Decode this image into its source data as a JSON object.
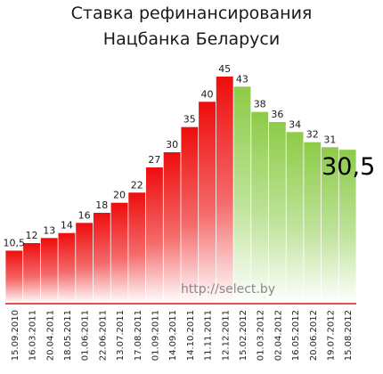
{
  "chart_data": {
    "type": "bar",
    "title": "Ставка рефинансирования",
    "subtitle": "Нацбанка Беларуси",
    "categories": [
      "15.09.2010",
      "16.03.2011",
      "20.04.2011",
      "18.05.2011",
      "01.06.2011",
      "22.06.2011",
      "13.07.2011",
      "17.08.2011",
      "01.09.2011",
      "14.09.2011",
      "14.10.2011",
      "11.11.2011",
      "12.12.2011",
      "15.02.2012",
      "01.03.2012",
      "02.04.2012",
      "16.05.2012",
      "20.06.2012",
      "19.07.2012",
      "15.08.2012"
    ],
    "values": [
      10.5,
      12,
      13,
      14,
      16,
      18,
      20,
      22,
      27,
      30,
      35,
      40,
      45,
      43,
      38,
      36,
      34,
      32,
      31,
      30.5
    ],
    "value_labels": [
      "10,5",
      "12",
      "13",
      "14",
      "16",
      "18",
      "20",
      "22",
      "27",
      "30",
      "35",
      "40",
      "45",
      "43",
      "38",
      "36",
      "34",
      "32",
      "31",
      "30,5"
    ],
    "phase": [
      "up",
      "up",
      "up",
      "up",
      "up",
      "up",
      "up",
      "up",
      "up",
      "up",
      "up",
      "up",
      "up",
      "down",
      "down",
      "down",
      "down",
      "down",
      "down",
      "down"
    ],
    "ylim": [
      0,
      48
    ],
    "grid": false,
    "legend": "none",
    "xlabel": "",
    "ylabel": "",
    "colors": {
      "increase": "#ee1111",
      "decrease": "#8fcc4c",
      "baseline": "#d21a1a"
    },
    "watermark": "http://select.by"
  }
}
